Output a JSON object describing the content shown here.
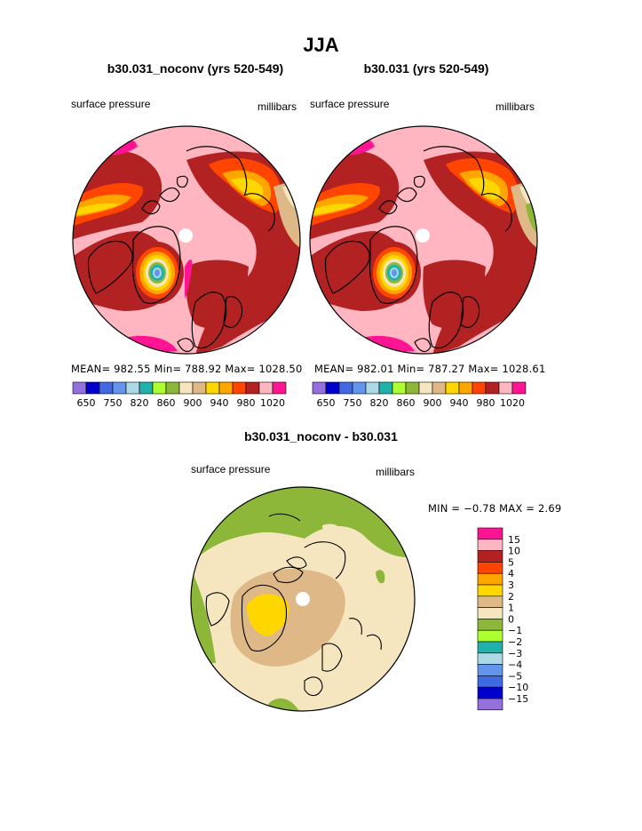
{
  "figure": {
    "title": "JJA",
    "panel_left": {
      "title": "b30.031_noconv (yrs 520-549)",
      "left_label": "surface pressure",
      "right_label": "millibars",
      "stats": "MEAN= 982.55  Min= 788.92  Max= 1028.50"
    },
    "panel_right": {
      "title": "b30.031 (yrs 520-549)",
      "left_label": "surface pressure",
      "right_label": "millibars",
      "stats": "MEAN= 982.01  Min= 787.27  Max= 1028.61"
    },
    "panel_diff": {
      "title": "b30.031_noconv - b30.031",
      "left_label": "surface pressure",
      "right_label": "millibars",
      "stats": "MIN =  −0.78  MAX =   2.69"
    }
  },
  "chart_data": [
    {
      "type": "heatmap",
      "projection": "north-polar-stereographic",
      "title": "b30.031_noconv (yrs 520-549)",
      "variable": "surface pressure",
      "units": "millibars",
      "mean": 982.55,
      "min": 788.92,
      "max": 1028.5,
      "colorbar_levels": [
        650,
        750,
        820,
        860,
        900,
        940,
        980,
        1020
      ],
      "colorbar_colors": [
        "#9370DB",
        "#0000CD",
        "#4169E1",
        "#6495ED",
        "#ADD8E6",
        "#20B2AA",
        "#ADFF2F",
        "#8DB739",
        "#F5E6C0",
        "#DEB887",
        "#FFD700",
        "#FFA500",
        "#FF4500",
        "#B22222",
        "#FFB6C1",
        "#FF1493"
      ]
    },
    {
      "type": "heatmap",
      "projection": "north-polar-stereographic",
      "title": "b30.031 (yrs 520-549)",
      "variable": "surface pressure",
      "units": "millibars",
      "mean": 982.01,
      "min": 787.27,
      "max": 1028.61,
      "colorbar_levels": [
        650,
        750,
        820,
        860,
        900,
        940,
        980,
        1020
      ],
      "colorbar_colors": [
        "#9370DB",
        "#0000CD",
        "#4169E1",
        "#6495ED",
        "#ADD8E6",
        "#20B2AA",
        "#ADFF2F",
        "#8DB739",
        "#F5E6C0",
        "#DEB887",
        "#FFD700",
        "#FFA500",
        "#FF4500",
        "#B22222",
        "#FFB6C1",
        "#FF1493"
      ]
    },
    {
      "type": "heatmap",
      "projection": "north-polar-stereographic",
      "title": "b30.031_noconv - b30.031",
      "variable": "surface pressure",
      "units": "millibars",
      "min": -0.78,
      "max": 2.69,
      "colorbar_levels": [
        "15",
        "10",
        "5",
        "4",
        "3",
        "2",
        "1",
        "0",
        "−1",
        "−2",
        "−3",
        "−4",
        "−5",
        "−10",
        "−15"
      ],
      "colorbar_colors": [
        "#FF1493",
        "#FFB6C1",
        "#B22222",
        "#FF4500",
        "#FFA500",
        "#FFD700",
        "#DEB887",
        "#F5E6C0",
        "#8DB739",
        "#ADFF2F",
        "#20B2AA",
        "#ADD8E6",
        "#6495ED",
        "#4169E1",
        "#0000CD",
        "#9370DB"
      ]
    }
  ]
}
